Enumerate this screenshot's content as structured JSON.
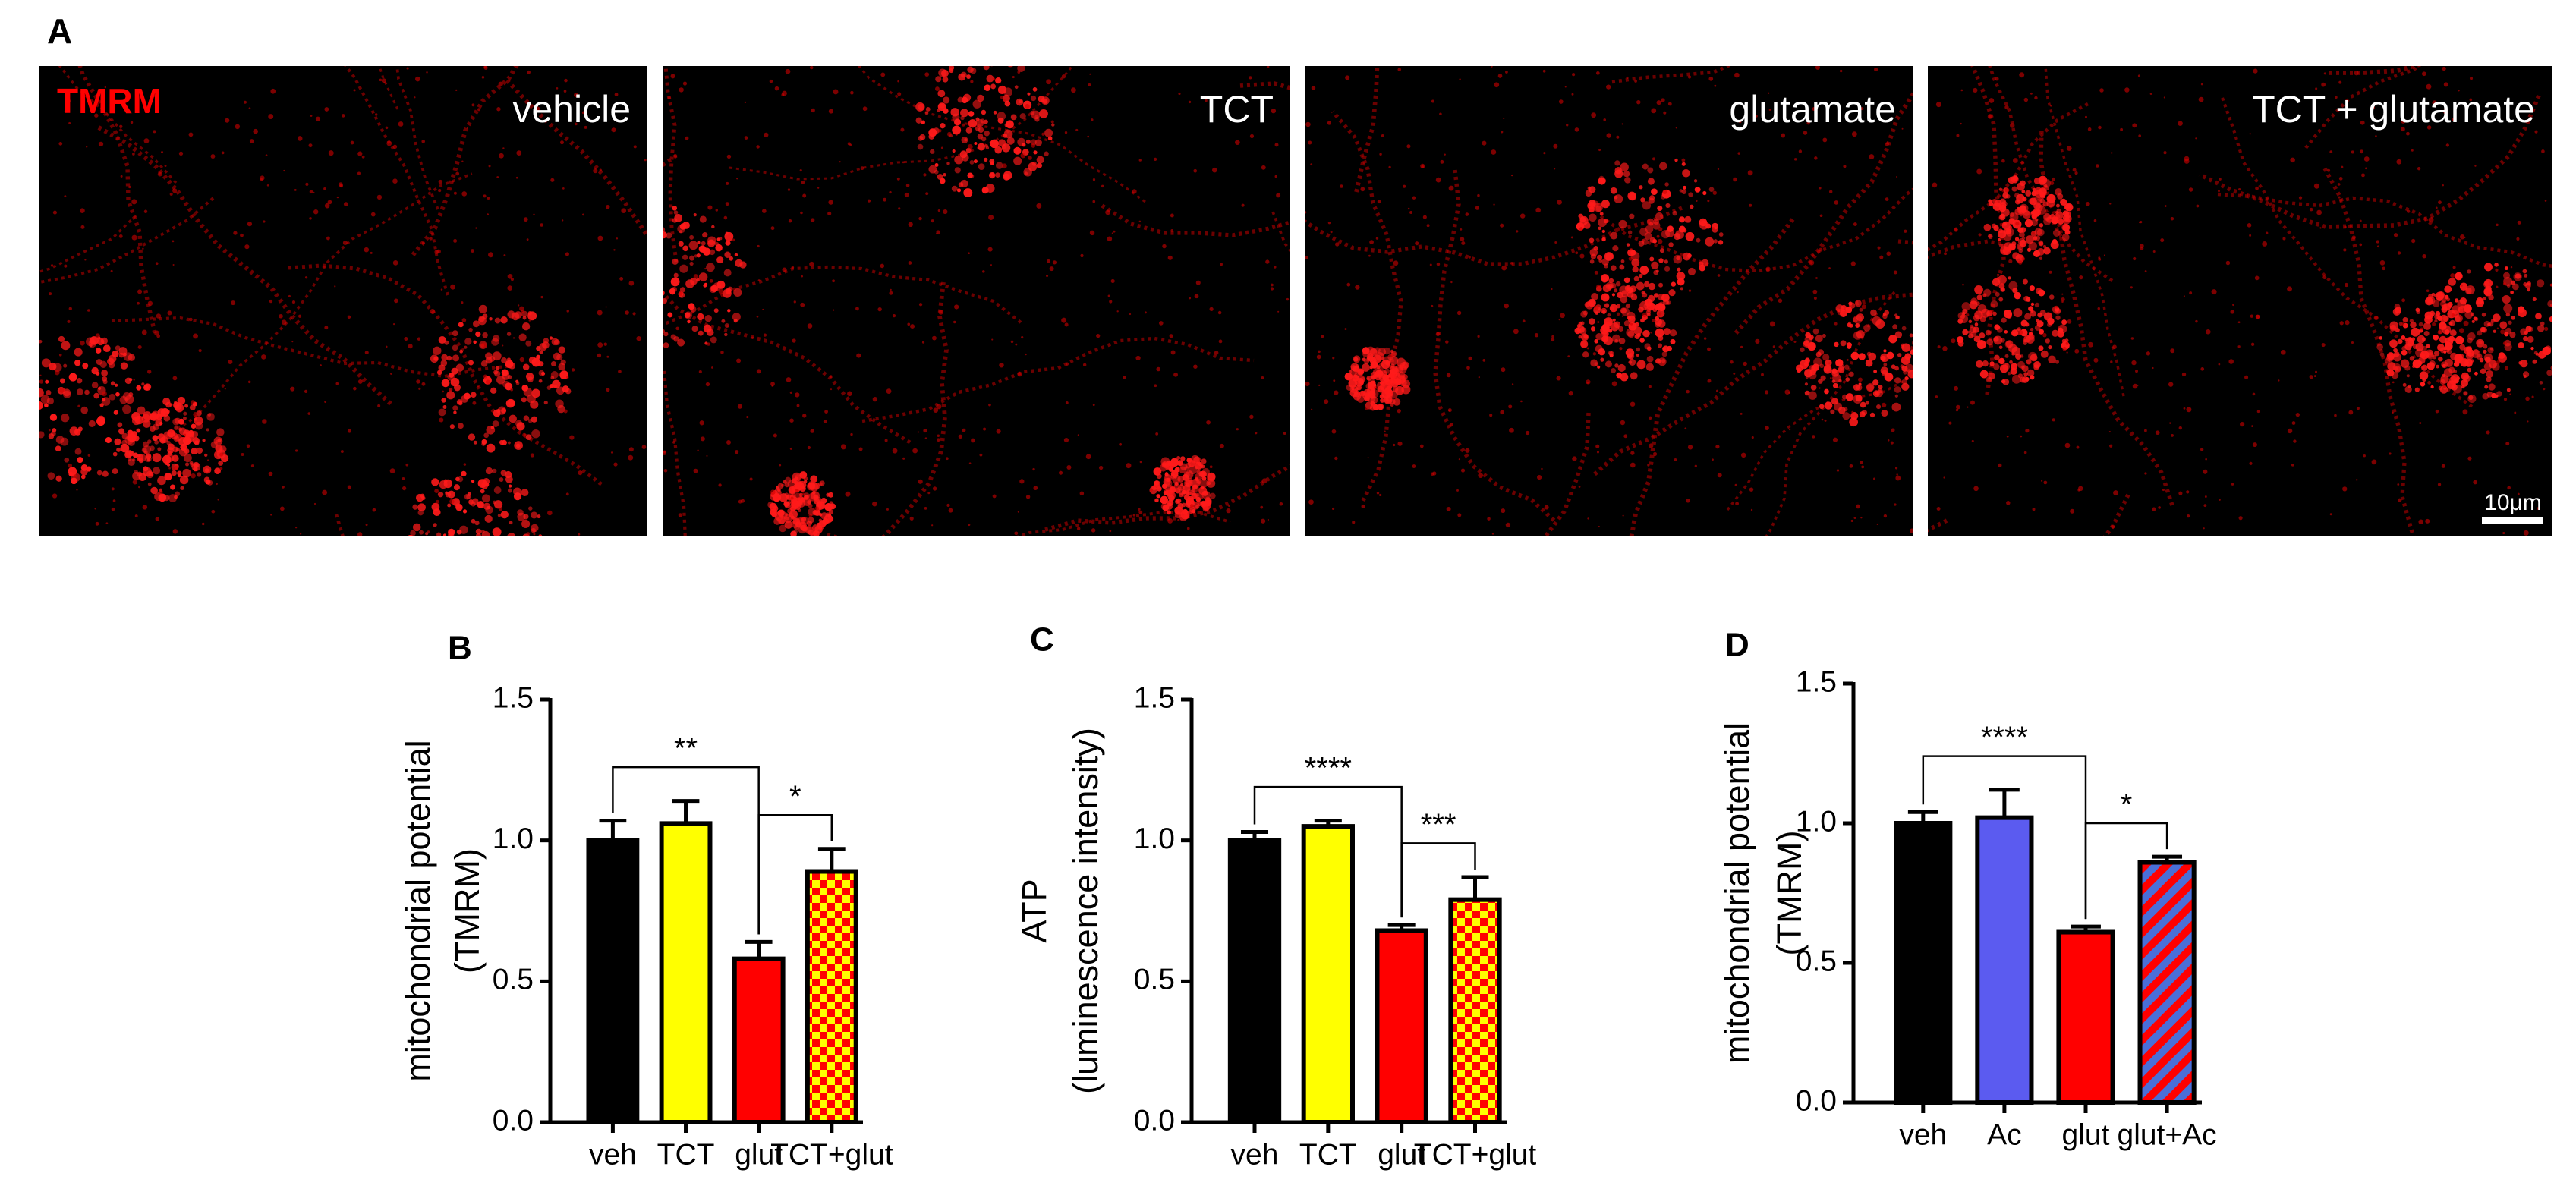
{
  "image_panel": {
    "label": "A",
    "stain": "TMRM",
    "conditions": [
      "vehicle",
      "TCT",
      "glutamate",
      "TCT + glutamate"
    ],
    "scale_bar": "10μm"
  },
  "chart_data": [
    {
      "type": "bar",
      "panel": "B",
      "ylabel": [
        "mitochondrial potential",
        "(TMRM)"
      ],
      "categories": [
        "veh",
        "TCT",
        "glut",
        "TCT+glut"
      ],
      "values": [
        1.0,
        1.06,
        0.58,
        0.89
      ],
      "errors": [
        0.07,
        0.08,
        0.06,
        0.08
      ],
      "colors": [
        "#000000",
        "#ffff00",
        "#ff0000",
        [
          "#ff0000",
          "#ffff00"
        ]
      ],
      "pattern": "checker",
      "ylim": [
        0,
        1.5
      ],
      "yticks": [
        {
          "value": 0,
          "label": "0.0"
        },
        0.5,
        {
          "value": 1,
          "label": "1.0"
        },
        1.5
      ],
      "annotations": [
        {
          "label": "**",
          "between": [
            "veh",
            "glut"
          ]
        },
        {
          "label": "*",
          "between": [
            "glut",
            "TCT+glut"
          ]
        }
      ]
    },
    {
      "type": "bar",
      "panel": "C",
      "ylabel": [
        "ATP",
        "(luminescence intensity)"
      ],
      "categories": [
        "veh",
        "TCT",
        "glut",
        "TCT+glut"
      ],
      "values": [
        1.0,
        1.05,
        0.68,
        0.79
      ],
      "errors": [
        0.03,
        0.02,
        0.02,
        0.08
      ],
      "colors": [
        "#000000",
        "#ffff00",
        "#ff0000",
        [
          "#ff0000",
          "#ffff00"
        ]
      ],
      "pattern": "checker",
      "ylim": [
        0,
        1.5
      ],
      "yticks": [
        {
          "value": 0,
          "label": "0.0"
        },
        0.5,
        {
          "value": 1,
          "label": "1.0"
        },
        1.5
      ],
      "annotations": [
        {
          "label": "****",
          "between": [
            "veh",
            "glut"
          ]
        },
        {
          "label": "***",
          "between": [
            "glut",
            "TCT+glut"
          ]
        }
      ]
    },
    {
      "type": "bar",
      "panel": "D",
      "ylabel": [
        "mitochondrial potential",
        "(TMRM)"
      ],
      "categories": [
        "veh",
        "Ac",
        "glut",
        "glut+Ac"
      ],
      "values": [
        1.0,
        1.02,
        0.61,
        0.86
      ],
      "errors": [
        0.04,
        0.1,
        0.02,
        0.02
      ],
      "colors": [
        "#000000",
        "#5b5bf0",
        "#ff0000",
        [
          "#ff0000",
          "#4a6fd8"
        ]
      ],
      "pattern": "stripes",
      "ylim": [
        0,
        1.5
      ],
      "yticks": [
        {
          "value": 0,
          "label": "0.0"
        },
        0.5,
        {
          "value": 1,
          "label": "1.0"
        },
        1.5
      ],
      "annotations": [
        {
          "label": "****",
          "between": [
            "veh",
            "glut"
          ]
        },
        {
          "label": "*",
          "between": [
            "glut",
            "glut+Ac"
          ]
        }
      ]
    }
  ]
}
